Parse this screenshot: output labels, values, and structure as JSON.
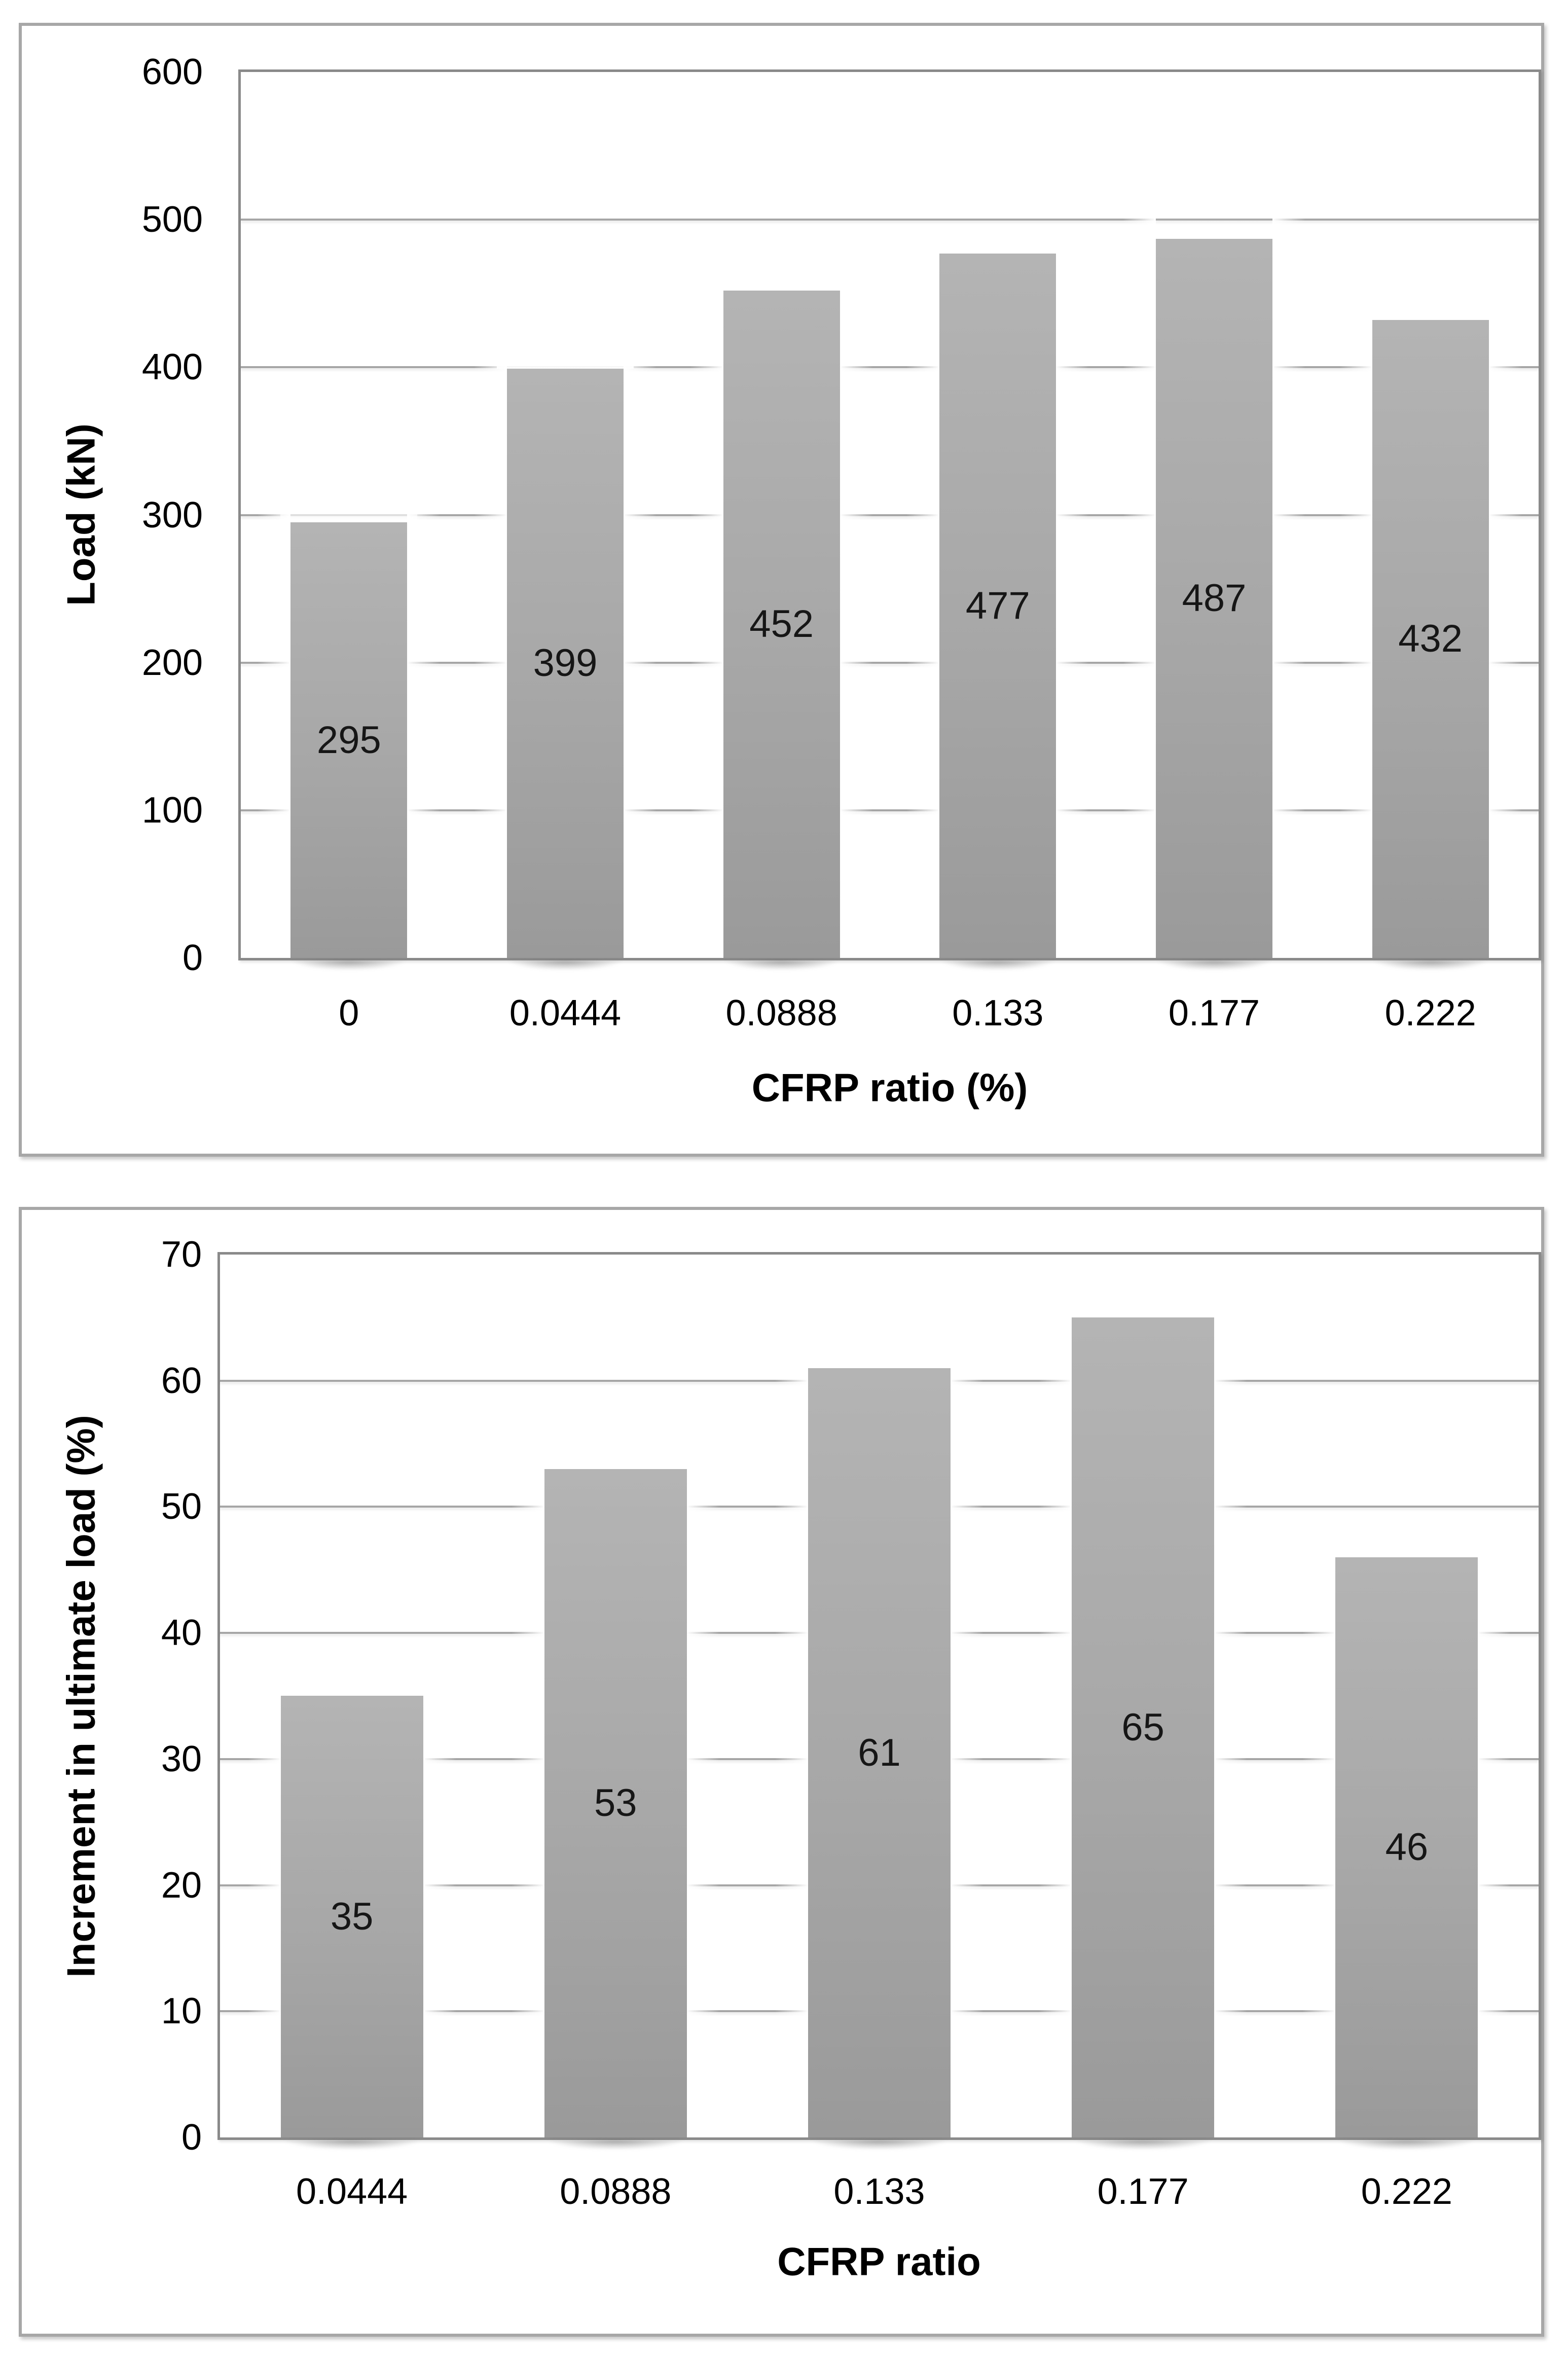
{
  "chart_data": [
    {
      "type": "bar",
      "categories": [
        "0",
        "0.0444",
        "0.0888",
        "0.133",
        "0.177",
        "0.222"
      ],
      "values": [
        295,
        399,
        452,
        477,
        487,
        432
      ],
      "xlabel": "CFRP ratio (%)",
      "ylabel": "Load (kN)",
      "ylim": [
        0,
        600
      ],
      "ytick_step": 100,
      "y_ticks": [
        "0",
        "100",
        "200",
        "300",
        "400",
        "500",
        "600"
      ],
      "grid": true,
      "legend": false,
      "bar_color": "#a7a7a7",
      "data_labels": [
        "295",
        "399",
        "452",
        "477",
        "487",
        "432"
      ]
    },
    {
      "type": "bar",
      "categories": [
        "0.0444",
        "0.0888",
        "0.133",
        "0.177",
        "0.222"
      ],
      "values": [
        35,
        53,
        61,
        65,
        46
      ],
      "xlabel": "CFRP ratio",
      "ylabel": "Increment in ultimate load (%)",
      "ylim": [
        0,
        70
      ],
      "ytick_step": 10,
      "y_ticks": [
        "0",
        "10",
        "20",
        "30",
        "40",
        "50",
        "60",
        "70"
      ],
      "grid": true,
      "legend": false,
      "bar_color": "#a7a7a7",
      "data_labels": [
        "35",
        "53",
        "61",
        "65",
        "46"
      ]
    }
  ]
}
